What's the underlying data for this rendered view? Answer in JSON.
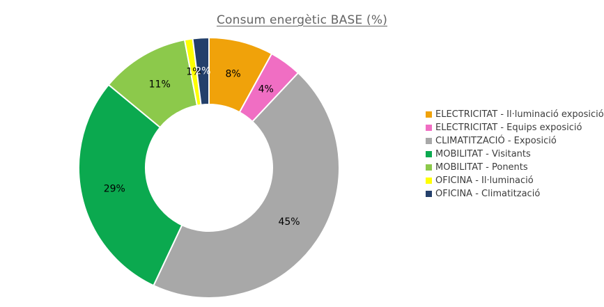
{
  "title": "Consum energètic BASE (%)",
  "chart_data": {
    "type": "pie",
    "subtype": "donut",
    "title": "Consum energètic BASE (%)",
    "unit": "%",
    "direction": "clockwise",
    "start_angle_deg": 0,
    "legend_position": "right",
    "grid": false,
    "categories": [
      "ELECTRICITAT - Il·luminació exposició",
      "ELECTRICITAT - Equips exposició",
      "CLIMATITZACIÓ - Exposició",
      "MOBILITAT - Visitants",
      "MOBILITAT - Ponents",
      "OFICINA - Il·luminació",
      "OFICINA - Climatització"
    ],
    "values": [
      8,
      4,
      45,
      29,
      11,
      1,
      2
    ],
    "data_labels": [
      "8%",
      "4%",
      "45%",
      "29%",
      "11%",
      "1%",
      "2%"
    ],
    "colors": [
      "#F0A20A",
      "#F06EC3",
      "#A8A8A8",
      "#0BA94F",
      "#8CC94B",
      "#FFFF00",
      "#24406B"
    ],
    "data_label_colors": [
      "#000000",
      "#000000",
      "#000000",
      "#000000",
      "#000000",
      "#000000",
      "#FFFFFF"
    ]
  },
  "legend": {
    "items": [
      {
        "label": "ELECTRICITAT - Il·luminació exposició",
        "color": "#F0A20A"
      },
      {
        "label": "ELECTRICITAT - Equips exposició",
        "color": "#F06EC3"
      },
      {
        "label": "CLIMATITZACIÓ - Exposició",
        "color": "#A8A8A8"
      },
      {
        "label": "MOBILITAT - Visitants",
        "color": "#0BA94F"
      },
      {
        "label": "MOBILITAT - Ponents",
        "color": "#8CC94B"
      },
      {
        "label": "OFICINA - Il·luminació",
        "color": "#FFFF00"
      },
      {
        "label": "OFICINA - Climatització",
        "color": "#24406B"
      }
    ]
  },
  "style": {
    "title_color": "#646464",
    "legend_text_color": "#3C3C3C",
    "slice_border_color": "#FFFFFF"
  }
}
